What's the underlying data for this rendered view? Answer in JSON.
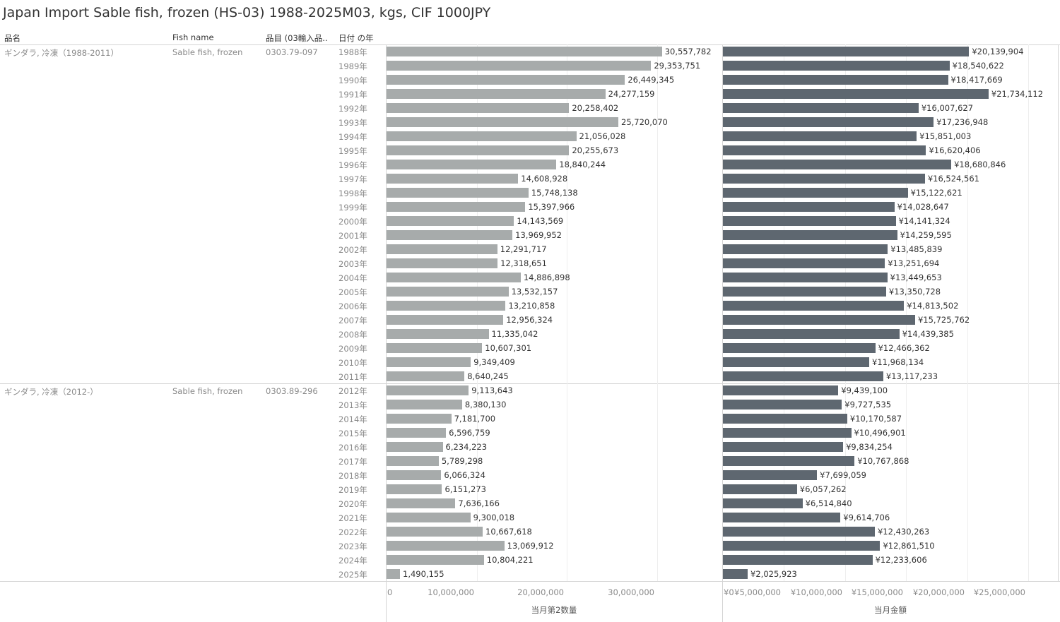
{
  "title": "Japan Import Sable fish, frozen (HS-03) 1988-2025M03, kgs, CIF 1000JPY",
  "headers": {
    "product": "品名",
    "fish": "Fish name",
    "code": "品目 (03輸入品..",
    "year": "日付 の年"
  },
  "groups": [
    {
      "product": "ギンダラ, 冷凍（1988-2011）",
      "fish": "Sable fish, frozen",
      "code": "0303.79-097"
    },
    {
      "product": "ギンダラ, 冷凍（2012-）",
      "fish": "Sable fish, frozen",
      "code": "0303.89-296"
    }
  ],
  "chart_data": [
    {
      "type": "bar",
      "orientation": "horizontal",
      "xlabel": "当月第2数量",
      "xlim": [
        0,
        38500000
      ],
      "ticks": [
        {
          "value": 0,
          "label": "0"
        },
        {
          "value": 10000000,
          "label": "10,000,000"
        },
        {
          "value": 20000000,
          "label": "20,000,000"
        },
        {
          "value": 30000000,
          "label": "30,000,000"
        }
      ],
      "categories": [
        "1988年",
        "1989年",
        "1990年",
        "1991年",
        "1992年",
        "1993年",
        "1994年",
        "1995年",
        "1996年",
        "1997年",
        "1998年",
        "1999年",
        "2000年",
        "2001年",
        "2002年",
        "2003年",
        "2004年",
        "2005年",
        "2006年",
        "2007年",
        "2008年",
        "2009年",
        "2010年",
        "2011年",
        "2012年",
        "2013年",
        "2014年",
        "2015年",
        "2016年",
        "2017年",
        "2018年",
        "2019年",
        "2020年",
        "2021年",
        "2022年",
        "2023年",
        "2024年",
        "2025年"
      ],
      "values": [
        30557782,
        29353751,
        26449345,
        24277159,
        20258402,
        25720070,
        21056028,
        20255673,
        18840244,
        14608928,
        15748138,
        15397966,
        14143569,
        13969952,
        12291717,
        12318651,
        14886898,
        13532157,
        13210858,
        12956324,
        11335042,
        10607301,
        9349409,
        8640245,
        9113643,
        8380130,
        7181700,
        6596759,
        6234223,
        5789298,
        6066324,
        6151273,
        7636166,
        9300018,
        10667618,
        13069912,
        10804221,
        1490155
      ],
      "labels": [
        "30,557,782",
        "29,353,751",
        "26,449,345",
        "24,277,159",
        "20,258,402",
        "25,720,070",
        "21,056,028",
        "20,255,673",
        "18,840,244",
        "14,608,928",
        "15,748,138",
        "15,397,966",
        "14,143,569",
        "13,969,952",
        "12,291,717",
        "12,318,651",
        "14,886,898",
        "13,532,157",
        "13,210,858",
        "12,956,324",
        "11,335,042",
        "10,607,301",
        "9,349,409",
        "8,640,245",
        "9,113,643",
        "8,380,130",
        "7,181,700",
        "6,596,759",
        "6,234,223",
        "5,789,298",
        "6,066,324",
        "6,151,273",
        "7,636,166",
        "9,300,018",
        "10,667,618",
        "13,069,912",
        "10,804,221",
        "1,490,155"
      ],
      "color": "#a7abab"
    },
    {
      "type": "bar",
      "orientation": "horizontal",
      "xlabel": "当月金額",
      "xlim": [
        0,
        27000000
      ],
      "ticks": [
        {
          "value": 0,
          "label": "¥0"
        },
        {
          "value": 5000000,
          "label": "¥5,000,000"
        },
        {
          "value": 10000000,
          "label": "¥10,000,000"
        },
        {
          "value": 15000000,
          "label": "¥15,000,000"
        },
        {
          "value": 20000000,
          "label": "¥20,000,000"
        },
        {
          "value": 25000000,
          "label": "¥25,000,000"
        }
      ],
      "categories": [
        "1988年",
        "1989年",
        "1990年",
        "1991年",
        "1992年",
        "1993年",
        "1994年",
        "1995年",
        "1996年",
        "1997年",
        "1998年",
        "1999年",
        "2000年",
        "2001年",
        "2002年",
        "2003年",
        "2004年",
        "2005年",
        "2006年",
        "2007年",
        "2008年",
        "2009年",
        "2010年",
        "2011年",
        "2012年",
        "2013年",
        "2014年",
        "2015年",
        "2016年",
        "2017年",
        "2018年",
        "2019年",
        "2020年",
        "2021年",
        "2022年",
        "2023年",
        "2024年",
        "2025年"
      ],
      "values": [
        20139904,
        18540622,
        18417669,
        21734112,
        16007627,
        17236948,
        15851003,
        16620406,
        18680846,
        16524561,
        15122621,
        14028647,
        14141324,
        14259595,
        13485839,
        13251694,
        13449653,
        13350728,
        14813502,
        15725762,
        14439385,
        12466362,
        11968134,
        13117233,
        9439100,
        9727535,
        10170587,
        10496901,
        9834254,
        10767868,
        7699059,
        6057262,
        6514840,
        9614706,
        12430263,
        12861510,
        12233606,
        2025923
      ],
      "labels": [
        "¥20,139,904",
        "¥18,540,622",
        "¥18,417,669",
        "¥21,734,112",
        "¥16,007,627",
        "¥17,236,948",
        "¥15,851,003",
        "¥16,620,406",
        "¥18,680,846",
        "¥16,524,561",
        "¥15,122,621",
        "¥14,028,647",
        "¥14,141,324",
        "¥14,259,595",
        "¥13,485,839",
        "¥13,251,694",
        "¥13,449,653",
        "¥13,350,728",
        "¥14,813,502",
        "¥15,725,762",
        "¥14,439,385",
        "¥12,466,362",
        "¥11,968,134",
        "¥13,117,233",
        "¥9,439,100",
        "¥9,727,535",
        "¥10,170,587",
        "¥10,496,901",
        "¥9,834,254",
        "¥10,767,868",
        "¥7,699,059",
        "¥6,057,262",
        "¥6,514,840",
        "¥9,614,706",
        "¥12,430,263",
        "¥12,861,510",
        "¥12,233,606",
        "¥2,025,923"
      ],
      "color": "#5e6770"
    }
  ]
}
